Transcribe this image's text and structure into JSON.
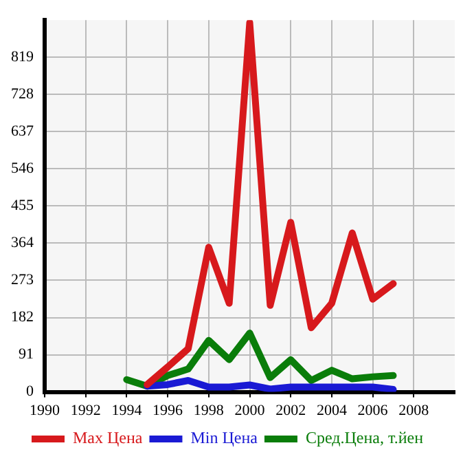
{
  "chart_data": {
    "type": "line",
    "x": [
      1994,
      1995,
      1996,
      1997,
      1998,
      1999,
      2000,
      2001,
      2002,
      2003,
      2004,
      2005,
      2006,
      2007
    ],
    "series": [
      {
        "name": "Max Цена",
        "color": "#d7191c",
        "values": [
          null,
          18,
          61,
          106,
          354,
          217,
          904,
          212,
          415,
          157,
          217,
          389,
          227,
          265
        ]
      },
      {
        "name": "Min Цена",
        "color": "#1a1ad4",
        "values": [
          null,
          14,
          18,
          28,
          12,
          12,
          17,
          7,
          12,
          12,
          12,
          12,
          12,
          6
        ]
      },
      {
        "name": "Сред.Цена, т.йен",
        "color": "#0a7d0a",
        "values": [
          30,
          14,
          40,
          56,
          126,
          79,
          144,
          35,
          79,
          28,
          53,
          32,
          37,
          40
        ]
      }
    ],
    "xlim": [
      1990,
      2010
    ],
    "xticks": [
      1990,
      1992,
      1994,
      1996,
      1998,
      2000,
      2002,
      2004,
      2006,
      2008
    ],
    "ylim": [
      0,
      910
    ],
    "yticks": [
      0,
      91,
      182,
      273,
      364,
      455,
      546,
      637,
      728,
      819
    ],
    "grid": true,
    "legend": "bottom",
    "marker": "none",
    "line_style": "solid"
  }
}
